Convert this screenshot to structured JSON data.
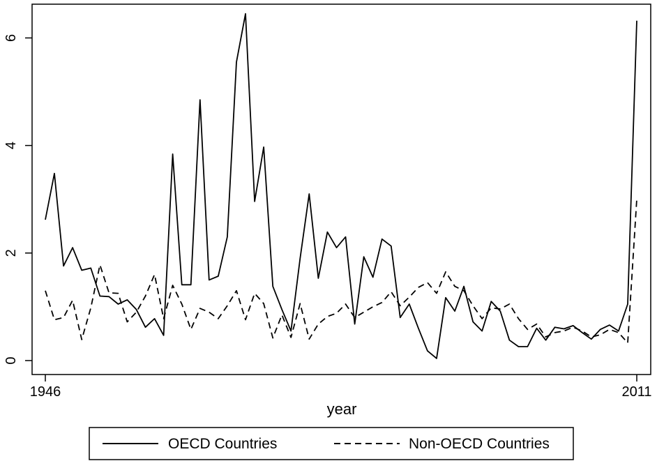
{
  "chart_data": {
    "type": "line",
    "xlabel": "year",
    "ylabel": "",
    "xlim": [
      1946,
      2011
    ],
    "ylim": [
      0,
      6.4
    ],
    "x_ticks": [
      1946,
      2011
    ],
    "x_tick_labels": [
      "1946",
      "2011"
    ],
    "y_ticks": [
      0,
      2,
      4,
      6
    ],
    "y_tick_labels": [
      "0",
      "2",
      "4",
      "6"
    ],
    "legend_position": "bottom",
    "grid": false,
    "x": [
      1946,
      1947,
      1948,
      1949,
      1950,
      1951,
      1952,
      1953,
      1954,
      1955,
      1956,
      1957,
      1958,
      1959,
      1960,
      1961,
      1962,
      1963,
      1964,
      1965,
      1966,
      1967,
      1968,
      1969,
      1970,
      1971,
      1972,
      1973,
      1974,
      1975,
      1976,
      1977,
      1978,
      1979,
      1980,
      1981,
      1982,
      1983,
      1984,
      1985,
      1986,
      1987,
      1988,
      1989,
      1990,
      1991,
      1992,
      1993,
      1994,
      1995,
      1996,
      1997,
      1998,
      1999,
      2000,
      2001,
      2002,
      2003,
      2004,
      2005,
      2006,
      2007,
      2008,
      2009,
      2010,
      2011
    ],
    "series": [
      {
        "name": "OECD Countries",
        "dash": "solid",
        "color": "#000000",
        "values": [
          2.62,
          3.48,
          1.76,
          2.1,
          1.68,
          1.72,
          1.2,
          1.19,
          1.05,
          1.13,
          0.95,
          0.62,
          0.78,
          0.47,
          3.84,
          1.41,
          1.41,
          4.85,
          1.5,
          1.57,
          2.3,
          5.55,
          6.45,
          2.96,
          3.97,
          1.38,
          0.95,
          0.55,
          1.9,
          3.1,
          1.53,
          2.39,
          2.1,
          2.3,
          0.68,
          1.93,
          1.55,
          2.26,
          2.13,
          0.8,
          1.05,
          0.6,
          0.18,
          0.04,
          1.17,
          0.92,
          1.38,
          0.72,
          0.55,
          1.1,
          0.92,
          0.38,
          0.26,
          0.26,
          0.6,
          0.38,
          0.62,
          0.59,
          0.65,
          0.52,
          0.4,
          0.58,
          0.66,
          0.55,
          1.05,
          6.32
        ]
      },
      {
        "name": "Non-OECD Countries",
        "dash": "dashed",
        "color": "#000000",
        "values": [
          1.3,
          0.76,
          0.8,
          1.12,
          0.39,
          0.98,
          1.78,
          1.26,
          1.25,
          0.72,
          0.9,
          1.2,
          1.6,
          0.78,
          1.4,
          1.05,
          0.58,
          0.97,
          0.9,
          0.78,
          1.02,
          1.3,
          0.76,
          1.25,
          1.06,
          0.42,
          0.85,
          0.43,
          1.06,
          0.4,
          0.68,
          0.82,
          0.88,
          1.05,
          0.8,
          0.9,
          1.0,
          1.08,
          1.28,
          1.02,
          1.18,
          1.36,
          1.45,
          1.25,
          1.65,
          1.38,
          1.3,
          1.02,
          0.78,
          0.98,
          0.96,
          1.05,
          0.78,
          0.58,
          0.68,
          0.44,
          0.52,
          0.55,
          0.62,
          0.55,
          0.44,
          0.48,
          0.58,
          0.52,
          0.33,
          3.0
        ]
      }
    ]
  }
}
